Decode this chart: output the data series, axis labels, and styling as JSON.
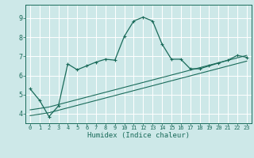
{
  "xlabel": "Humidex (Indice chaleur)",
  "bg_color": "#cde8e8",
  "grid_color": "#ffffff",
  "line_color": "#1a6b5a",
  "xlim": [
    -0.5,
    23.5
  ],
  "ylim": [
    3.5,
    9.7
  ],
  "xticks": [
    0,
    1,
    2,
    3,
    4,
    5,
    6,
    7,
    8,
    9,
    10,
    11,
    12,
    13,
    14,
    15,
    16,
    17,
    18,
    19,
    20,
    21,
    22,
    23
  ],
  "yticks": [
    4,
    5,
    6,
    7,
    8,
    9
  ],
  "curve1_x": [
    0,
    1,
    2,
    3,
    4,
    5,
    6,
    7,
    8,
    9,
    10,
    11,
    12,
    13,
    14,
    15,
    16,
    17,
    18,
    19,
    20,
    21,
    22,
    23
  ],
  "curve1_y": [
    5.3,
    4.7,
    3.85,
    4.4,
    6.6,
    6.3,
    6.5,
    6.7,
    6.85,
    6.8,
    8.05,
    8.85,
    9.05,
    8.85,
    7.65,
    6.85,
    6.85,
    6.35,
    6.35,
    6.5,
    6.65,
    6.8,
    7.05,
    6.95
  ],
  "curve2_x": [
    0,
    2,
    23
  ],
  "curve2_y": [
    3.9,
    4.05,
    6.75
  ],
  "curve3_x": [
    0,
    2,
    23
  ],
  "curve3_y": [
    4.2,
    4.35,
    7.05
  ]
}
